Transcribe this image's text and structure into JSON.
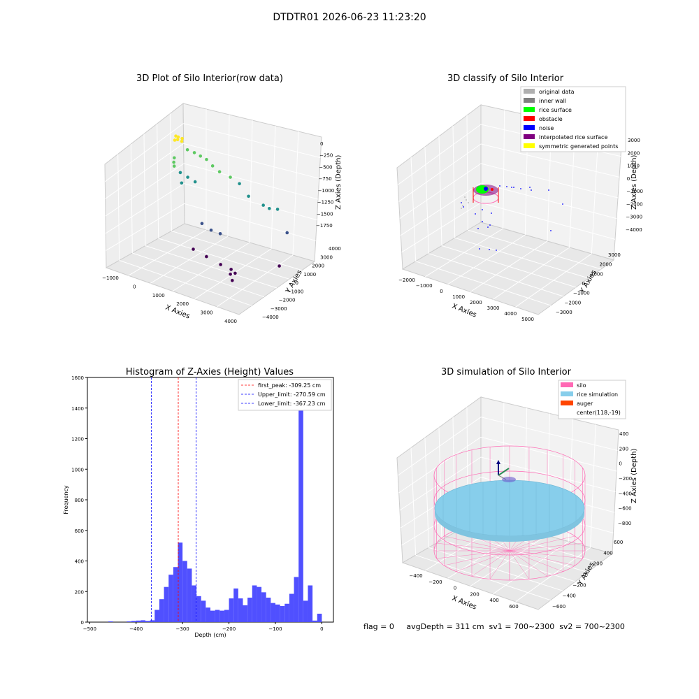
{
  "figure": {
    "suptitle": "DTDTR01 2026-06-23 11:23:20",
    "footer": "flag = 0     avgDepth = 311 cm  sv1 = 700~2300  sv2 = 700~2300"
  },
  "chart_data": [
    {
      "type": "scatter",
      "title": "3D Plot of Silo Interior(row data)",
      "xlabel": "X Axies",
      "ylabel": "Y Axies",
      "zlabel": "Z Axies (Depth)",
      "x_ticks": [
        "−1000",
        "0",
        "1000",
        "2000",
        "3000",
        "4000"
      ],
      "y_ticks": [
        "−4000",
        "−3000",
        "−2000",
        "−1000",
        "0",
        "1000",
        "2000",
        "3000",
        "4000"
      ],
      "z_ticks": [
        "0",
        "−250",
        "−500",
        "−750",
        "−1000",
        "−1250",
        "−1500",
        "−1750"
      ],
      "colormap": [
        "#440154",
        "#3b528b",
        "#21918c",
        "#5ec962",
        "#fde725"
      ],
      "points": [
        {
          "x": 0,
          "y": 0,
          "z": -50
        },
        {
          "x": 100,
          "y": 200,
          "z": -80
        },
        {
          "x": -150,
          "y": 100,
          "z": -60
        },
        {
          "x": 200,
          "y": -100,
          "z": -90
        },
        {
          "x": 50,
          "y": -200,
          "z": -70
        },
        {
          "x": -100,
          "y": -150,
          "z": -100
        },
        {
          "x": 300,
          "y": 300,
          "z": -250
        },
        {
          "x": 500,
          "y": 600,
          "z": -300
        },
        {
          "x": 700,
          "y": 800,
          "z": -350
        },
        {
          "x": 900,
          "y": 1000,
          "z": -400
        },
        {
          "x": -300,
          "y": 300,
          "z": -450
        },
        {
          "x": -400,
          "y": 500,
          "z": -550
        },
        {
          "x": -500,
          "y": 800,
          "z": -650
        },
        {
          "x": -300,
          "y": 1000,
          "z": -750
        },
        {
          "x": 0,
          "y": 1100,
          "z": -800
        },
        {
          "x": 300,
          "y": 1200,
          "z": -850
        },
        {
          "x": -200,
          "y": 900,
          "z": -900
        },
        {
          "x": 1100,
          "y": 1200,
          "z": -500
        },
        {
          "x": 1300,
          "y": 1500,
          "z": -600
        },
        {
          "x": 1600,
          "y": 2000,
          "z": -700
        },
        {
          "x": 1900,
          "y": 2300,
          "z": -800
        },
        {
          "x": 2200,
          "y": 2600,
          "z": -1000
        },
        {
          "x": 2800,
          "y": 2800,
          "z": -1100
        },
        {
          "x": 3000,
          "y": 3000,
          "z": -1150
        },
        {
          "x": 3300,
          "y": 3200,
          "z": -1150
        },
        {
          "x": 3700,
          "y": 3300,
          "z": -1500
        },
        {
          "x": 1200,
          "y": -300,
          "z": -1300
        },
        {
          "x": 1500,
          "y": 0,
          "z": -1400
        },
        {
          "x": 1800,
          "y": 300,
          "z": -1450
        },
        {
          "x": 1000,
          "y": -800,
          "z": -1700
        },
        {
          "x": 1600,
          "y": -800,
          "z": -1750
        },
        {
          "x": 2400,
          "y": -1200,
          "z": -1750
        },
        {
          "x": 2800,
          "y": -1000,
          "z": -1800
        },
        {
          "x": 3100,
          "y": -1300,
          "z": -1800
        },
        {
          "x": 3000,
          "y": -1600,
          "z": -1800
        },
        {
          "x": 3200,
          "y": -1900,
          "z": -1850
        },
        {
          "x": 4000,
          "y": 1600,
          "z": -1850
        }
      ]
    },
    {
      "type": "scatter",
      "title": "3D classify of Silo Interior",
      "xlabel": "X Axies",
      "ylabel": "Y Axies",
      "zlabel": "Z Axies (Depth)",
      "x_ticks": [
        "−2000",
        "−1000",
        "0",
        "1000",
        "2000",
        "3000",
        "4000",
        "5000"
      ],
      "y_ticks": [
        "−3000",
        "−2000",
        "−1000",
        "0",
        "1000",
        "2000",
        "3000"
      ],
      "z_ticks": [
        "3000",
        "2000",
        "1000",
        "0",
        "−1000",
        "−2000",
        "−3000",
        "−4000"
      ],
      "legend": [
        {
          "label": "original data",
          "color": "#b0b0b0"
        },
        {
          "label": "inner wall",
          "color": "#808080"
        },
        {
          "label": "rice surface",
          "color": "#00ff00"
        },
        {
          "label": "obstacle",
          "color": "#ff0000"
        },
        {
          "label": "noise",
          "color": "#0000ff"
        },
        {
          "label": "interpolated rice surface",
          "color": "#800080"
        },
        {
          "label": "symmetric generated points",
          "color": "#ffff00"
        }
      ]
    },
    {
      "type": "bar",
      "title": "Histogram of Z-Axies (Height) Values",
      "xlabel": "Depth (cm)",
      "ylabel": "Frequency",
      "xlim": [
        -505,
        25
      ],
      "ylim": [
        0,
        1600
      ],
      "x_ticks": [
        -500,
        -400,
        -300,
        -200,
        -100,
        0
      ],
      "y_ticks": [
        0,
        200,
        400,
        600,
        800,
        1000,
        1200,
        1400,
        1600
      ],
      "bin_width": 10,
      "bins": [
        {
          "x": -460,
          "y": 5
        },
        {
          "x": -420,
          "y": 5
        },
        {
          "x": -410,
          "y": 8
        },
        {
          "x": -400,
          "y": 10
        },
        {
          "x": -390,
          "y": 12
        },
        {
          "x": -380,
          "y": 8
        },
        {
          "x": -370,
          "y": 12
        },
        {
          "x": -360,
          "y": 80
        },
        {
          "x": -350,
          "y": 150
        },
        {
          "x": -340,
          "y": 230
        },
        {
          "x": -330,
          "y": 310
        },
        {
          "x": -320,
          "y": 360
        },
        {
          "x": -310,
          "y": 520
        },
        {
          "x": -300,
          "y": 400
        },
        {
          "x": -290,
          "y": 350
        },
        {
          "x": -280,
          "y": 240
        },
        {
          "x": -270,
          "y": 170
        },
        {
          "x": -260,
          "y": 140
        },
        {
          "x": -250,
          "y": 95
        },
        {
          "x": -240,
          "y": 75
        },
        {
          "x": -230,
          "y": 80
        },
        {
          "x": -220,
          "y": 75
        },
        {
          "x": -210,
          "y": 80
        },
        {
          "x": -200,
          "y": 155
        },
        {
          "x": -190,
          "y": 220
        },
        {
          "x": -180,
          "y": 155
        },
        {
          "x": -170,
          "y": 110
        },
        {
          "x": -160,
          "y": 160
        },
        {
          "x": -150,
          "y": 240
        },
        {
          "x": -140,
          "y": 230
        },
        {
          "x": -130,
          "y": 195
        },
        {
          "x": -120,
          "y": 160
        },
        {
          "x": -110,
          "y": 125
        },
        {
          "x": -100,
          "y": 115
        },
        {
          "x": -90,
          "y": 105
        },
        {
          "x": -80,
          "y": 120
        },
        {
          "x": -70,
          "y": 185
        },
        {
          "x": -60,
          "y": 295
        },
        {
          "x": -50,
          "y": 1520
        },
        {
          "x": -40,
          "y": 140
        },
        {
          "x": -30,
          "y": 240
        },
        {
          "x": -20,
          "y": 10
        },
        {
          "x": -10,
          "y": 55
        }
      ],
      "vlines": [
        {
          "label": "first_peak: -309.25 cm",
          "x": -309.25,
          "color": "#ff0000"
        },
        {
          "label": "Upper_limit: -270.59 cm",
          "x": -270.59,
          "color": "#0000ff"
        },
        {
          "label": "Lower_limit: -367.23 cm",
          "x": -367.23,
          "color": "#0000ff"
        }
      ],
      "bar_color": "#5050ff"
    },
    {
      "type": "surface",
      "title": "3D simulation of Silo Interior",
      "xlabel": "X Axies",
      "ylabel": "Y Axies",
      "zlabel": "Z Axies (Depth)",
      "x_ticks": [
        "−400",
        "−200",
        "0",
        "200",
        "400",
        "600"
      ],
      "y_ticks": [
        "−600",
        "−400",
        "−200",
        "0",
        "200",
        "400",
        "600"
      ],
      "z_ticks": [
        "400",
        "200",
        "0",
        "−200",
        "−400",
        "−600",
        "−800"
      ],
      "legend": [
        {
          "label": "silo",
          "color": "#ff69b4"
        },
        {
          "label": "rice simulation",
          "color": "#87ceeb"
        },
        {
          "label": "auger",
          "color": "#ff4500"
        },
        {
          "label": "center(118,-19)",
          "color": ""
        }
      ]
    }
  ]
}
